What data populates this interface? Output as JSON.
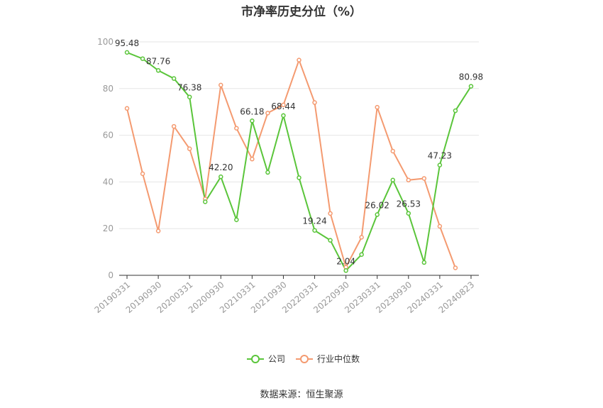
{
  "page": {
    "title": "市净率历史分位（%）",
    "source": "数据来源：恒生聚源"
  },
  "chart_data": {
    "type": "line",
    "title": "市净率历史分位（%）",
    "xlabel": "",
    "ylabel": "",
    "ylim": [
      0,
      100
    ],
    "yticks": [
      0,
      20,
      40,
      60,
      80,
      100
    ],
    "grid": true,
    "legend_position": "bottom",
    "x": [
      "20190331",
      "20190630",
      "20190930",
      "20191231",
      "20200331",
      "20200630",
      "20200930",
      "20201231",
      "20210331",
      "20210630",
      "20210930",
      "20211231",
      "20220331",
      "20220630",
      "20220930",
      "20221231",
      "20230331",
      "20230630",
      "20230930",
      "20231231",
      "20240331",
      "20240630",
      "20240823"
    ],
    "x_tick_labels": [
      "20190331",
      "20190930",
      "20200331",
      "20200930",
      "20210331",
      "20210930",
      "20220331",
      "20220930",
      "20230331",
      "20230930",
      "20240331",
      "20240823"
    ],
    "x_tick_indices": [
      0,
      2,
      4,
      6,
      8,
      10,
      12,
      14,
      16,
      18,
      20,
      22
    ],
    "series": [
      {
        "name": "公司",
        "color": "#5ac53a",
        "values": [
          95.48,
          92.8,
          87.76,
          84.3,
          76.38,
          31.5,
          42.2,
          23.8,
          66.18,
          44.1,
          68.44,
          41.8,
          19.24,
          15.0,
          2.04,
          8.9,
          26.02,
          40.8,
          26.53,
          5.5,
          47.23,
          70.5,
          80.98
        ],
        "labels": {
          "0": "95.48",
          "2": "87.76",
          "4": "76.38",
          "6": "42.20",
          "8": "66.18",
          "10": "68.44",
          "12": "19.24",
          "14": "2.04",
          "16": "26.02",
          "18": "26.53",
          "20": "47.23",
          "22": "80.98"
        }
      },
      {
        "name": "行业中位数",
        "color": "#f49a70",
        "values": [
          71.5,
          43.5,
          19.0,
          63.8,
          54.2,
          32.7,
          81.5,
          63.0,
          49.8,
          69.5,
          73.0,
          92.2,
          74.0,
          26.5,
          3.5,
          16.3,
          72.0,
          53.2,
          40.8,
          41.5,
          21.0,
          3.2,
          null
        ]
      }
    ]
  }
}
